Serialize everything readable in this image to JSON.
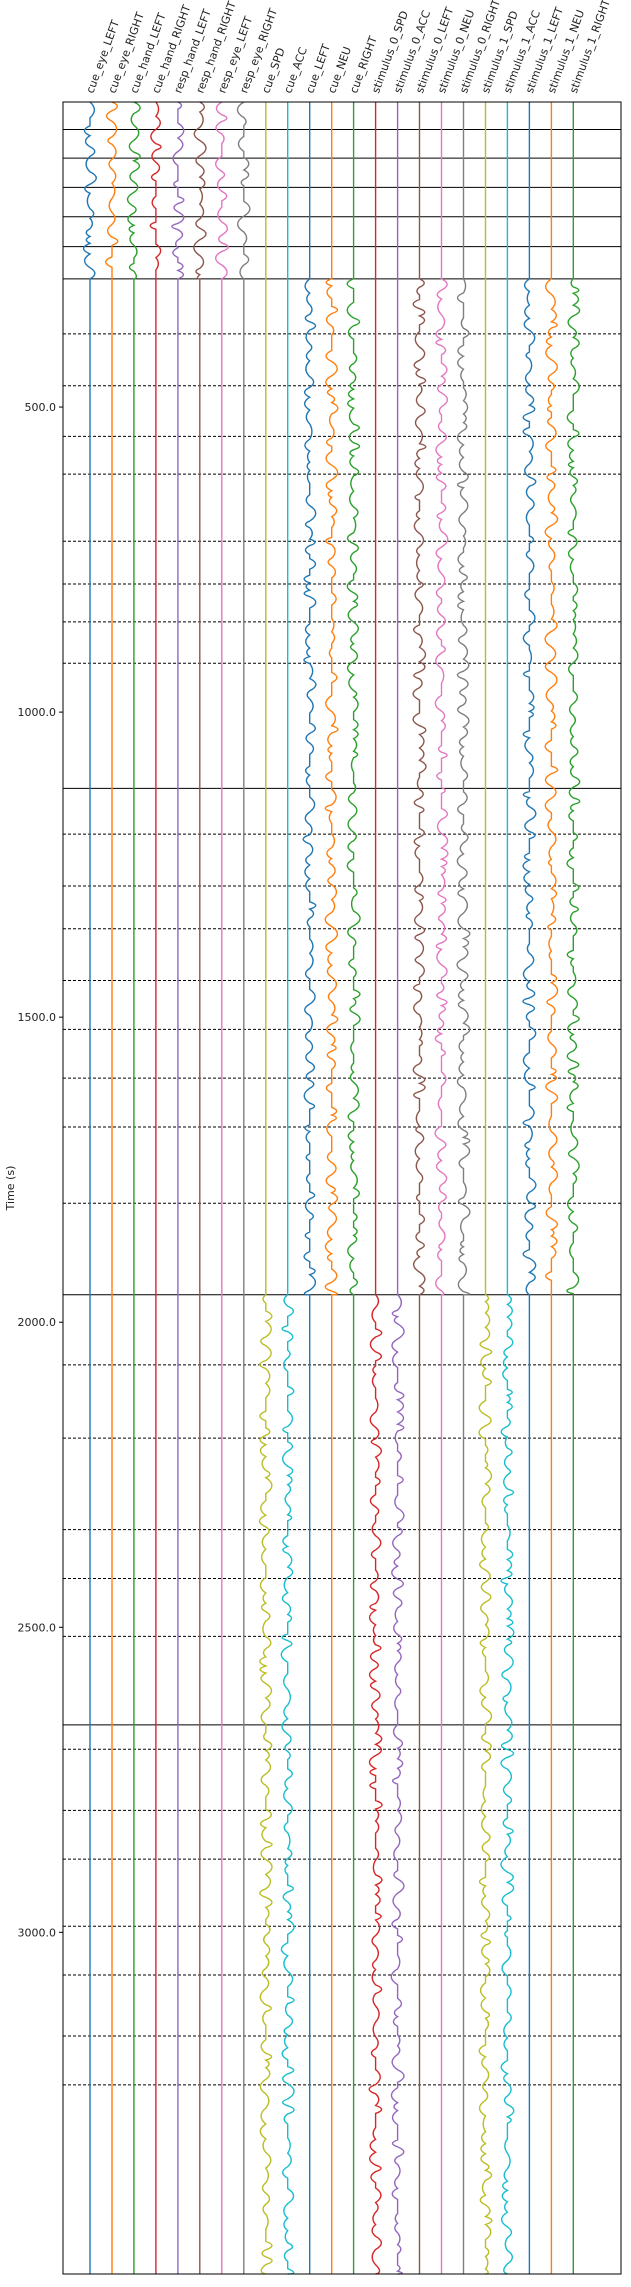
{
  "chart_data": {
    "type": "line",
    "title": "",
    "xlabel": "",
    "ylabel": "Time (s)",
    "ylim": [
      3560,
      0
    ],
    "y_ticks": [
      500.0,
      1000.0,
      1500.0,
      2000.0,
      2500.0,
      3000.0
    ],
    "y_tick_labels": [
      "500.0",
      "1000.0",
      "1500.0",
      "2000.0",
      "2500.0",
      "3000.0"
    ],
    "grid": false,
    "legend": "none",
    "series": [
      {
        "name": "cue_eye_LEFT",
        "color": "#1f77b4",
        "active": [
          [
            0,
            290
          ]
        ]
      },
      {
        "name": "cue_eye_RIGHT",
        "color": "#ff7f0e",
        "active": [
          [
            0,
            290
          ]
        ]
      },
      {
        "name": "cue_hand_LEFT",
        "color": "#2ca02c",
        "active": [
          [
            0,
            290
          ]
        ]
      },
      {
        "name": "cue_hand_RIGHT",
        "color": "#d62728",
        "active": [
          [
            0,
            290
          ]
        ]
      },
      {
        "name": "resp_hand_LEFT",
        "color": "#9467bd",
        "active": [
          [
            0,
            290
          ]
        ]
      },
      {
        "name": "resp_hand_RIGHT",
        "color": "#8c564b",
        "active": [
          [
            0,
            290
          ]
        ]
      },
      {
        "name": "resp_eye_LEFT",
        "color": "#e377c2",
        "active": [
          [
            0,
            290
          ]
        ]
      },
      {
        "name": "resp_eye_RIGHT",
        "color": "#7f7f7f",
        "active": [
          [
            0,
            290
          ]
        ]
      },
      {
        "name": "cue_SPD",
        "color": "#bcbd22",
        "active": [
          [
            1955,
            3560
          ]
        ]
      },
      {
        "name": "cue_ACC",
        "color": "#17becf",
        "active": [
          [
            1955,
            3560
          ]
        ]
      },
      {
        "name": "cue_LEFT",
        "color": "#1f77b4",
        "active": [
          [
            290,
            1955
          ]
        ]
      },
      {
        "name": "cue_NEU",
        "color": "#ff7f0e",
        "active": [
          [
            290,
            1955
          ]
        ]
      },
      {
        "name": "cue_RIGHT",
        "color": "#2ca02c",
        "active": [
          [
            290,
            1955
          ]
        ]
      },
      {
        "name": "stimulus_0_SPD",
        "color": "#d62728",
        "active": [
          [
            1955,
            3560
          ]
        ]
      },
      {
        "name": "stimulus_0_ACC",
        "color": "#9467bd",
        "active": [
          [
            1955,
            3560
          ]
        ]
      },
      {
        "name": "stimulus_0_LEFT",
        "color": "#8c564b",
        "active": [
          [
            290,
            1955
          ]
        ]
      },
      {
        "name": "stimulus_0_NEU",
        "color": "#e377c2",
        "active": [
          [
            290,
            1955
          ]
        ]
      },
      {
        "name": "stimulus_0_RIGHT",
        "color": "#7f7f7f",
        "active": [
          [
            290,
            1955
          ]
        ]
      },
      {
        "name": "stimulus_1_SPD",
        "color": "#bcbd22",
        "active": [
          [
            1955,
            3560
          ]
        ]
      },
      {
        "name": "stimulus_1_ACC",
        "color": "#17becf",
        "active": [
          [
            1955,
            3560
          ]
        ]
      },
      {
        "name": "stimulus_1_LEFT",
        "color": "#1f77b4",
        "active": [
          [
            290,
            1955
          ]
        ]
      },
      {
        "name": "stimulus_1_NEU",
        "color": "#ff7f0e",
        "active": [
          [
            290,
            1955
          ]
        ]
      },
      {
        "name": "stimulus_1_RIGHT",
        "color": "#2ca02c",
        "active": [
          [
            290,
            1955
          ]
        ]
      }
    ],
    "solid_boundaries": [
      0,
      45,
      92,
      140,
      188,
      237,
      290,
      1125,
      1955,
      2660
    ],
    "dashed_boundaries": [
      380,
      465,
      548,
      610,
      720,
      790,
      852,
      920,
      1200,
      1285,
      1355,
      1440,
      1520,
      1600,
      1680,
      1805,
      2070,
      2190,
      2340,
      2420,
      2515,
      2700,
      2800,
      2880,
      2990,
      3070,
      3170,
      3250
    ]
  }
}
